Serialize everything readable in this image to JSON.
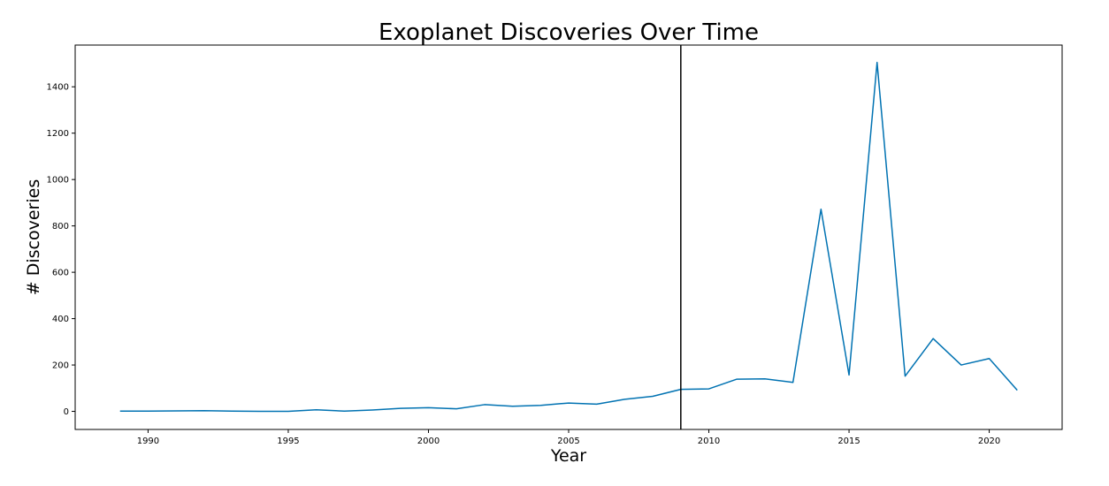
{
  "chart_data": {
    "type": "line",
    "title": "Exoplanet Discoveries Over Time",
    "xlabel": "Year",
    "ylabel": "# Discoveries",
    "xlim": [
      1987.4,
      2022.6
    ],
    "ylim": [
      -78,
      1580
    ],
    "x_ticks": [
      1990,
      1995,
      2000,
      2005,
      2010,
      2015,
      2020
    ],
    "y_ticks": [
      0,
      200,
      400,
      600,
      800,
      1000,
      1200,
      1400
    ],
    "grid": false,
    "series": [
      {
        "color": "#0072b2",
        "x": [
          1989,
          1990,
          1991,
          1992,
          1993,
          1994,
          1995,
          1996,
          1997,
          1998,
          1999,
          2000,
          2001,
          2002,
          2003,
          2004,
          2005,
          2006,
          2007,
          2008,
          2009,
          2010,
          2011,
          2012,
          2013,
          2014,
          2015,
          2016,
          2017,
          2018,
          2019,
          2020,
          2021
        ],
        "values": [
          1,
          1,
          2,
          3,
          1,
          0,
          0,
          7,
          1,
          6,
          13,
          16,
          11,
          29,
          22,
          26,
          36,
          31,
          52,
          65,
          95,
          97,
          139,
          140,
          125,
          872,
          157,
          1505,
          152,
          314,
          200,
          228,
          91
        ]
      }
    ],
    "vline": {
      "x": 2009,
      "color": "#000000"
    }
  }
}
